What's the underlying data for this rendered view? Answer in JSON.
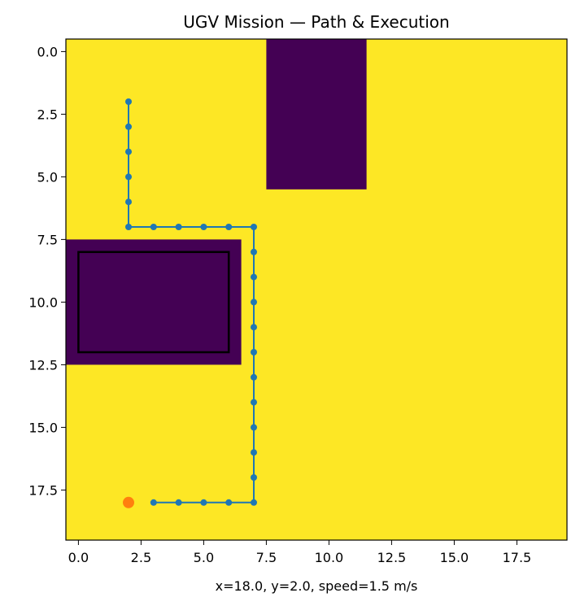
{
  "chart_data": {
    "type": "heatmap",
    "title": "UGV Mission — Path & Execution",
    "xlabel": "x=18.0, y=2.0, speed=1.5 m/s",
    "ylabel": "",
    "xlim": [
      -0.5,
      19.5
    ],
    "ylim": [
      19.5,
      -0.5
    ],
    "y_axis_inverted": true,
    "grid": false,
    "x_ticks": [
      0.0,
      2.5,
      5.0,
      7.5,
      10.0,
      12.5,
      15.0,
      17.5
    ],
    "x_tick_labels": [
      "0.0",
      "2.5",
      "5.0",
      "7.5",
      "10.0",
      "12.5",
      "15.0",
      "17.5"
    ],
    "y_ticks": [
      0.0,
      2.5,
      5.0,
      7.5,
      10.0,
      12.5,
      15.0,
      17.5
    ],
    "y_tick_labels": [
      "0.0",
      "2.5",
      "5.0",
      "7.5",
      "10.0",
      "12.5",
      "15.0",
      "17.5"
    ],
    "grid_size": [
      20,
      20
    ],
    "colors": {
      "free": "#fde725",
      "obstacle": "#440154",
      "path": "#1f77b4",
      "current_position": "#ff7f0e",
      "box": "#000000"
    },
    "obstacles": [
      {
        "x_range": [
          8,
          11
        ],
        "y_range": [
          0,
          5
        ]
      },
      {
        "x_range": [
          0,
          6
        ],
        "y_range": [
          8,
          12
        ]
      }
    ],
    "outlined_box": {
      "x_range": [
        0,
        6
      ],
      "y_range": [
        8,
        12
      ]
    },
    "series": [
      {
        "x": [
          2,
          2,
          2,
          2,
          2,
          2,
          3,
          4,
          5,
          6,
          7,
          7,
          7,
          7,
          7,
          7,
          7,
          7,
          7,
          7,
          7,
          7,
          6,
          5,
          4,
          3
        ],
        "y": [
          2,
          3,
          4,
          5,
          6,
          7,
          7,
          7,
          7,
          7,
          7,
          8,
          9,
          10,
          11,
          12,
          13,
          14,
          15,
          16,
          17,
          18,
          18,
          18,
          18,
          18
        ]
      }
    ],
    "current_position": {
      "x": 2,
      "y": 18
    }
  }
}
